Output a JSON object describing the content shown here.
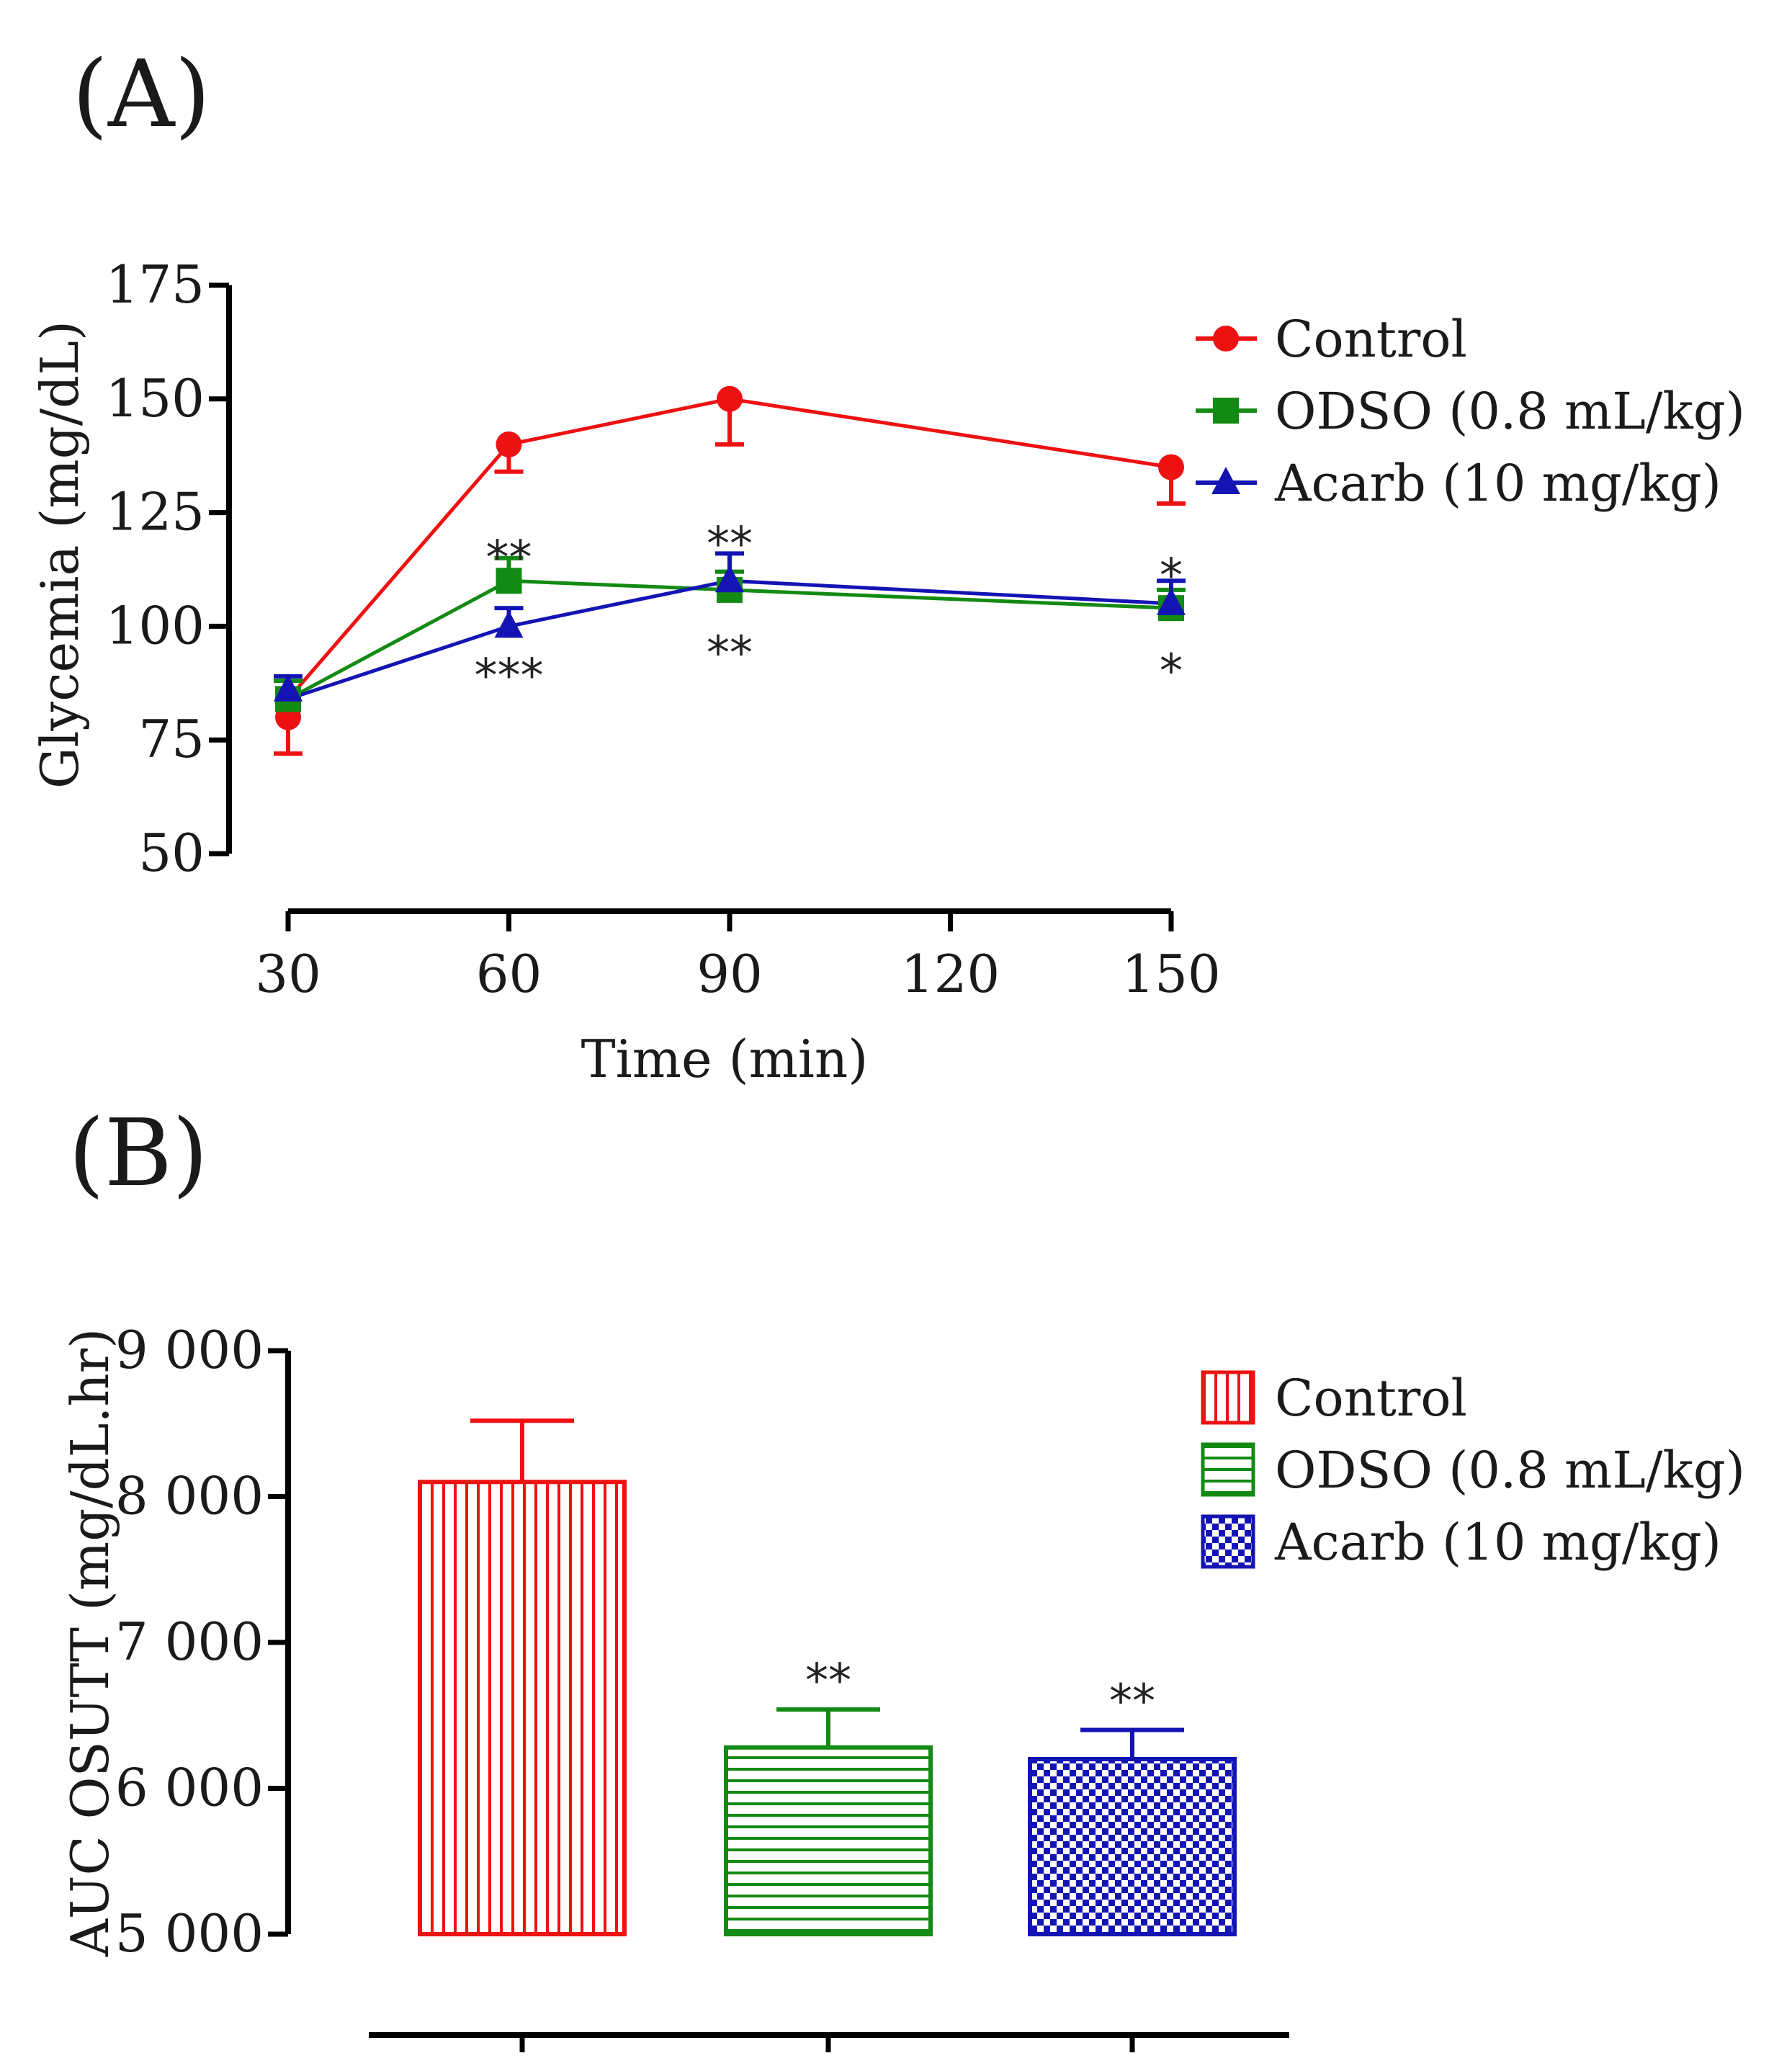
{
  "colors": {
    "control": "#ee1111",
    "odso": "#138a13",
    "acarb": "#1414b4",
    "axis": "#000000"
  },
  "chart_data": [
    {
      "panel_label": "(A)",
      "type": "line",
      "xlabel": "Time (min)",
      "ylabel": "Glycemia (mg/dL)",
      "x": [
        30,
        60,
        90,
        150
      ],
      "xticks": [
        "30",
        "60",
        "90",
        "120",
        "150"
      ],
      "xtick_values": [
        30,
        60,
        90,
        120,
        150
      ],
      "xlim": [
        30,
        150
      ],
      "yticks": [
        "50",
        "75",
        "100",
        "125",
        "150",
        "175"
      ],
      "ytick_values": [
        50,
        75,
        100,
        125,
        150,
        175
      ],
      "ylim": [
        50,
        175
      ],
      "legend_position": "top-right",
      "series": [
        {
          "key": "control",
          "name": "Control",
          "marker": "circle",
          "values": [
            80,
            140,
            150,
            135
          ],
          "error": [
            8,
            6,
            10,
            8
          ],
          "error_direction": "down"
        },
        {
          "key": "odso",
          "name": "ODSO (0.8 mL/kg)",
          "marker": "square",
          "values": [
            84,
            110,
            108,
            104
          ],
          "error": [
            4,
            5,
            4,
            4
          ],
          "error_direction": "up"
        },
        {
          "key": "acarb",
          "name": "Acarb (10 mg/kg)",
          "marker": "triangle",
          "values": [
            86,
            100,
            110,
            105
          ],
          "error": [
            3,
            4,
            6,
            5
          ],
          "error_direction": "up"
        }
      ],
      "annotations": [
        {
          "text": "**",
          "x": 60,
          "y": 118
        },
        {
          "text": "***",
          "x": 60,
          "y": 92
        },
        {
          "text": "**",
          "x": 90,
          "y": 121
        },
        {
          "text": "**",
          "x": 90,
          "y": 97
        },
        {
          "text": "*",
          "x": 150,
          "y": 114
        },
        {
          "text": "*",
          "x": 150,
          "y": 93
        }
      ]
    },
    {
      "panel_label": "(B)",
      "type": "bar",
      "xlabel": "",
      "ylabel": "AUC OSUTT (mg/dL.hr)",
      "categories": [
        "Control",
        "ODSO (0.8 mL/kg)",
        "Acarb (10 mg/kg)"
      ],
      "keys": [
        "control",
        "odso",
        "acarb"
      ],
      "patterns": [
        "vertical-lines",
        "horizontal-lines",
        "checkerboard"
      ],
      "values": [
        8100,
        6280,
        6200
      ],
      "error": [
        420,
        260,
        200
      ],
      "significance": [
        "",
        "**",
        "**"
      ],
      "yticks": [
        "5 000",
        "6 000",
        "7 000",
        "8 000",
        "9 000"
      ],
      "ytick_values": [
        5000,
        6000,
        7000,
        8000,
        9000
      ],
      "ylim": [
        5000,
        9000
      ],
      "legend_position": "top-right"
    }
  ]
}
